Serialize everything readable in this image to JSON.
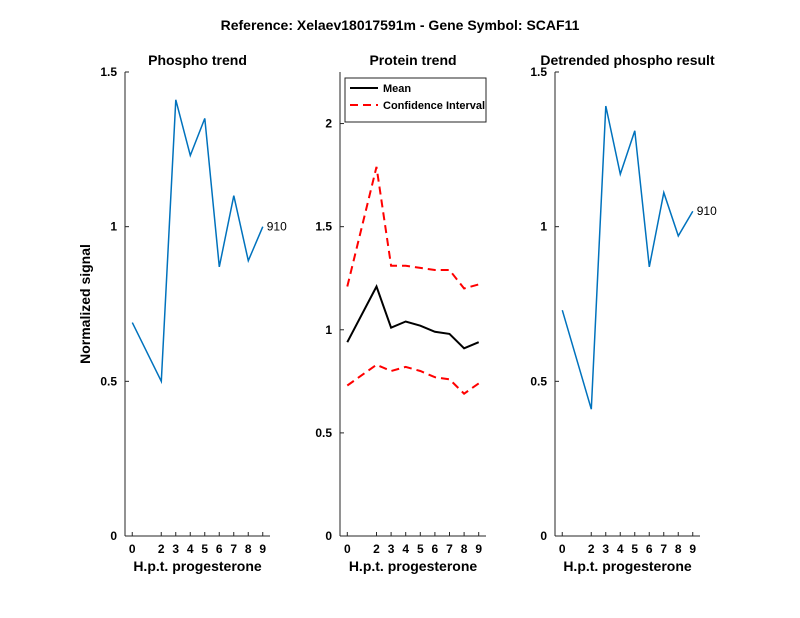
{
  "figure_title": "Reference:  Xelaev18017591m - Gene Symbol:  SCAF11",
  "chart_data": [
    {
      "type": "line",
      "title": "Phospho trend",
      "xlabel": "H.p.t. progesterone",
      "ylabel": "Normalized signal",
      "x": [
        0,
        2,
        3,
        4,
        5,
        6,
        7,
        8,
        9
      ],
      "xticklabels": [
        "0",
        "2",
        "3",
        "4",
        "5",
        "6",
        "7",
        "8",
        "9"
      ],
      "ylim": [
        0,
        1.5
      ],
      "yticks": [
        0,
        0.5,
        1,
        1.5
      ],
      "yticklabels": [
        "0",
        "0.5",
        "1",
        "1.5"
      ],
      "grid": false,
      "series": [
        {
          "values": [
            0.69,
            0.5,
            1.41,
            1.23,
            1.35,
            0.87,
            1.1,
            0.89,
            1.0
          ],
          "color": "#0072BD",
          "style": "solid",
          "end_label": "910"
        }
      ]
    },
    {
      "type": "line",
      "title": "Protein trend",
      "xlabel": "H.p.t. progesterone",
      "ylabel": "",
      "x": [
        0,
        2,
        3,
        4,
        5,
        6,
        7,
        8,
        9
      ],
      "xticklabels": [
        "0",
        "2",
        "3",
        "4",
        "5",
        "6",
        "7",
        "8",
        "9"
      ],
      "ylim": [
        0,
        2.25
      ],
      "yticks": [
        0,
        0.5,
        1,
        1.5,
        2
      ],
      "yticklabels": [
        "0",
        "0.5",
        "1",
        "1.5",
        "2"
      ],
      "grid": false,
      "legend_location": "top-left",
      "series": [
        {
          "name": "Mean",
          "values": [
            0.94,
            1.21,
            1.01,
            1.04,
            1.02,
            0.99,
            0.98,
            0.91,
            0.94
          ],
          "color": "#000000",
          "style": "solid"
        },
        {
          "name": "Confidence Interval",
          "values": [
            1.21,
            1.79,
            1.31,
            1.31,
            1.3,
            1.29,
            1.29,
            1.2,
            1.22
          ],
          "color": "#FF0000",
          "style": "dashed"
        },
        {
          "values": [
            0.73,
            0.83,
            0.8,
            0.82,
            0.8,
            0.77,
            0.76,
            0.69,
            0.74
          ],
          "color": "#FF0000",
          "style": "dashed"
        }
      ]
    },
    {
      "type": "line",
      "title": "Detrended phospho result",
      "xlabel": "H.p.t. progesterone",
      "ylabel": "",
      "x": [
        0,
        2,
        3,
        4,
        5,
        6,
        7,
        8,
        9
      ],
      "xticklabels": [
        "0",
        "2",
        "3",
        "4",
        "5",
        "6",
        "7",
        "8",
        "9"
      ],
      "ylim": [
        0,
        1.5
      ],
      "yticks": [
        0,
        0.5,
        1,
        1.5
      ],
      "yticklabels": [
        "0",
        "0.5",
        "1",
        "1.5"
      ],
      "grid": false,
      "series": [
        {
          "values": [
            0.73,
            0.41,
            1.39,
            1.17,
            1.31,
            0.87,
            1.11,
            0.97,
            1.05
          ],
          "color": "#0072BD",
          "style": "solid",
          "end_label": "910"
        }
      ]
    }
  ]
}
